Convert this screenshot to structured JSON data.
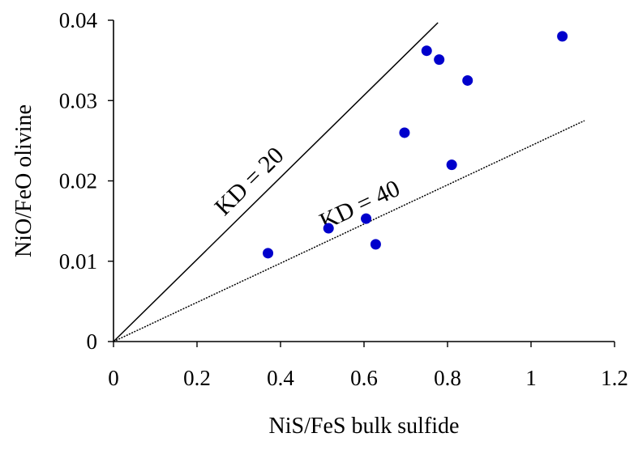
{
  "chart_data": {
    "type": "scatter",
    "title": "",
    "xlabel": "NiS/FeS bulk sulfide",
    "ylabel": "NiO/FeO olivine",
    "xlim": [
      0,
      1.2
    ],
    "ylim": [
      0,
      0.04
    ],
    "x_ticks": [
      0,
      0.2,
      0.4,
      0.6,
      0.8,
      1,
      1.2
    ],
    "x_tick_labels": [
      "0",
      "0.2",
      "0.4",
      "0.6",
      "0.8",
      "1",
      "1.2"
    ],
    "y_ticks": [
      0,
      0.01,
      0.02,
      0.03,
      0.04
    ],
    "y_tick_labels": [
      "0",
      "0.01",
      "0.02",
      "0.03",
      "0.04"
    ],
    "grid": false,
    "legend": "none",
    "point_color": "#0000cc",
    "series": [
      {
        "points": [
          {
            "x": 0.37,
            "y": 0.011
          },
          {
            "x": 0.515,
            "y": 0.0141
          },
          {
            "x": 0.605,
            "y": 0.0153
          },
          {
            "x": 0.628,
            "y": 0.0121
          },
          {
            "x": 0.697,
            "y": 0.026
          },
          {
            "x": 0.75,
            "y": 0.0362
          },
          {
            "x": 0.78,
            "y": 0.0351
          },
          {
            "x": 0.81,
            "y": 0.022
          },
          {
            "x": 0.848,
            "y": 0.0325
          },
          {
            "x": 1.075,
            "y": 0.038
          }
        ]
      }
    ],
    "reference_lines": [
      {
        "label": "KD = 20",
        "style": "solid",
        "x": [
          0,
          0.777
        ],
        "y": [
          0,
          0.0397
        ]
      },
      {
        "label": "KD = 40",
        "style": "dotted",
        "x": [
          0,
          1.128
        ],
        "y": [
          0,
          0.0275
        ]
      }
    ]
  }
}
